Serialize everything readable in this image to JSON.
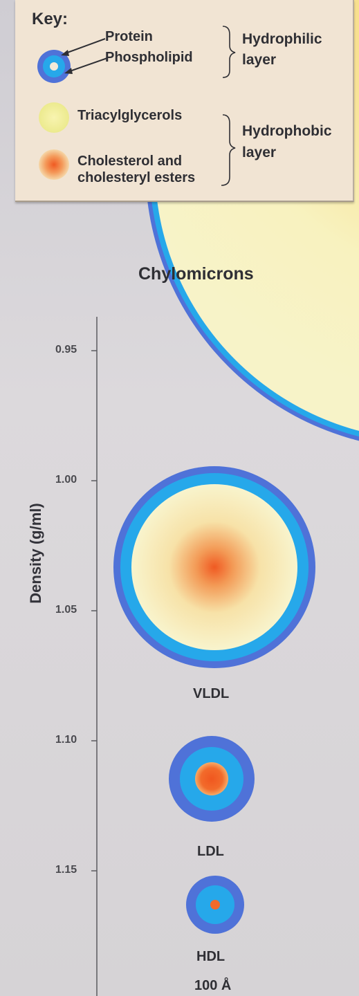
{
  "key": {
    "title": "Key:",
    "protein_label": "Protein",
    "phospholipid_label": "Phospholipid",
    "hydrophilic_label_line1": "Hydrophilic",
    "hydrophilic_label_line2": "layer",
    "triacylglycerols_label": "Triacylglycerols",
    "cholesterol_label_line1": "Cholesterol and",
    "cholesterol_label_line2": "cholesteryl esters",
    "hydrophobic_label_line1": "Hydrophobic",
    "hydrophobic_label_line2": "layer"
  },
  "axis": {
    "title": "Density (g/ml)",
    "ticks": [
      {
        "value": 0.95,
        "label": "0.95"
      },
      {
        "value": 1.0,
        "label": "1.00"
      },
      {
        "value": 1.05,
        "label": "1.05"
      },
      {
        "value": 1.1,
        "label": "1.10"
      },
      {
        "value": 1.15,
        "label": "1.15"
      }
    ]
  },
  "particles": {
    "chylomicrons": "Chylomicrons",
    "vldl": "VLDL",
    "ldl": "LDL",
    "hdl": "HDL"
  },
  "scale_label": "100 Å",
  "colors": {
    "protein": "#4f72d8",
    "phospholipid": "#26a8ea",
    "triacylglycerols": "#f7f3b6",
    "cholesterol": "#f26a2a",
    "key_panel": "#f1e4d3"
  }
}
